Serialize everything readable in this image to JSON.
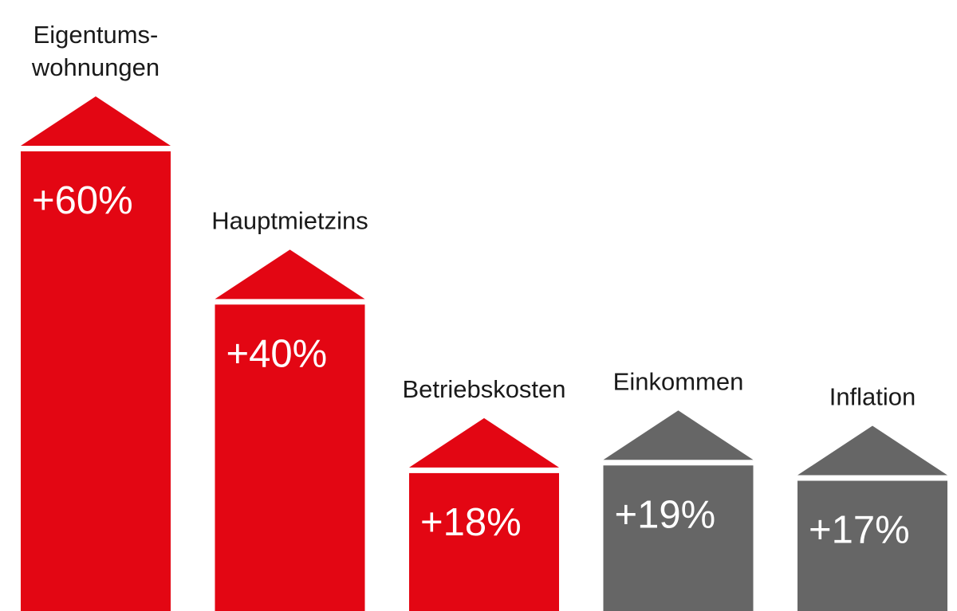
{
  "chart_data": {
    "type": "bar",
    "categories": [
      [
        "Eigentums-",
        "wohnungen"
      ],
      [
        "Hauptmietzins"
      ],
      [
        "Betriebskosten"
      ],
      [
        "Einkommen"
      ],
      [
        "Inflation"
      ]
    ],
    "values": [
      60,
      40,
      18,
      19,
      17
    ],
    "value_labels": [
      "+60%",
      "+40%",
      "+18%",
      "+19%",
      "+17%"
    ],
    "unit": "%",
    "title": "",
    "xlabel": "",
    "ylabel": "",
    "ylim": [
      0,
      60
    ],
    "grid": false,
    "bar_colors": [
      "#e30613",
      "#e30613",
      "#e30613",
      "#666666",
      "#666666"
    ]
  }
}
